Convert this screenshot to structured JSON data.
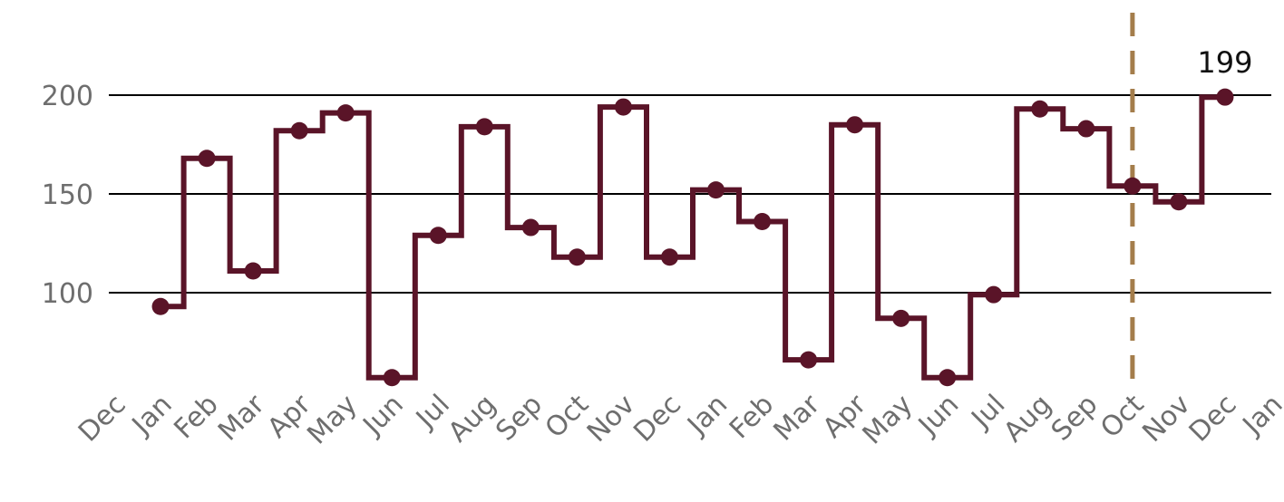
{
  "chart_data": {
    "type": "line",
    "step": "mid",
    "x_tick_labels": [
      "Dec",
      "Jan",
      "Feb",
      "Mar",
      "Apr",
      "May",
      "Jun",
      "Jul",
      "Aug",
      "Sep",
      "Oct",
      "Nov",
      "Dec",
      "Jan",
      "Feb",
      "Mar",
      "Apr",
      "May",
      "Jun",
      "Jul",
      "Aug",
      "Sep",
      "Oct",
      "Nov",
      "Dec",
      "Jan"
    ],
    "categories": [
      "Jan",
      "Feb",
      "Mar",
      "Apr",
      "May",
      "Jun",
      "Jul",
      "Aug",
      "Sep",
      "Oct",
      "Nov",
      "Dec",
      "Jan",
      "Feb",
      "Mar",
      "Apr",
      "May",
      "Jun",
      "Jul",
      "Aug",
      "Sep",
      "Oct",
      "Nov",
      "Dec"
    ],
    "series": [
      {
        "values": [
          93,
          168,
          111,
          182,
          191,
          57,
          129,
          184,
          133,
          118,
          194,
          118,
          152,
          136,
          66,
          185,
          87,
          57,
          99,
          193,
          183,
          154,
          146,
          199
        ]
      }
    ],
    "y_ticks": [
      100,
      150,
      200
    ],
    "y_tick_labels": [
      "100",
      "150",
      "200"
    ],
    "ylim": [
      57,
      242
    ],
    "grid": {
      "y": true,
      "x": false
    },
    "reference_line": {
      "after_category_index": 21,
      "style": "dashed",
      "color": "#a47d4b"
    },
    "data_label": {
      "index": 23,
      "text": "199"
    },
    "colors": {
      "line": "#5a1428",
      "markers": "#5a1428",
      "grid": "#000000",
      "tick_text": "#6e6e6e"
    },
    "title": "",
    "xlabel": "",
    "ylabel": ""
  }
}
